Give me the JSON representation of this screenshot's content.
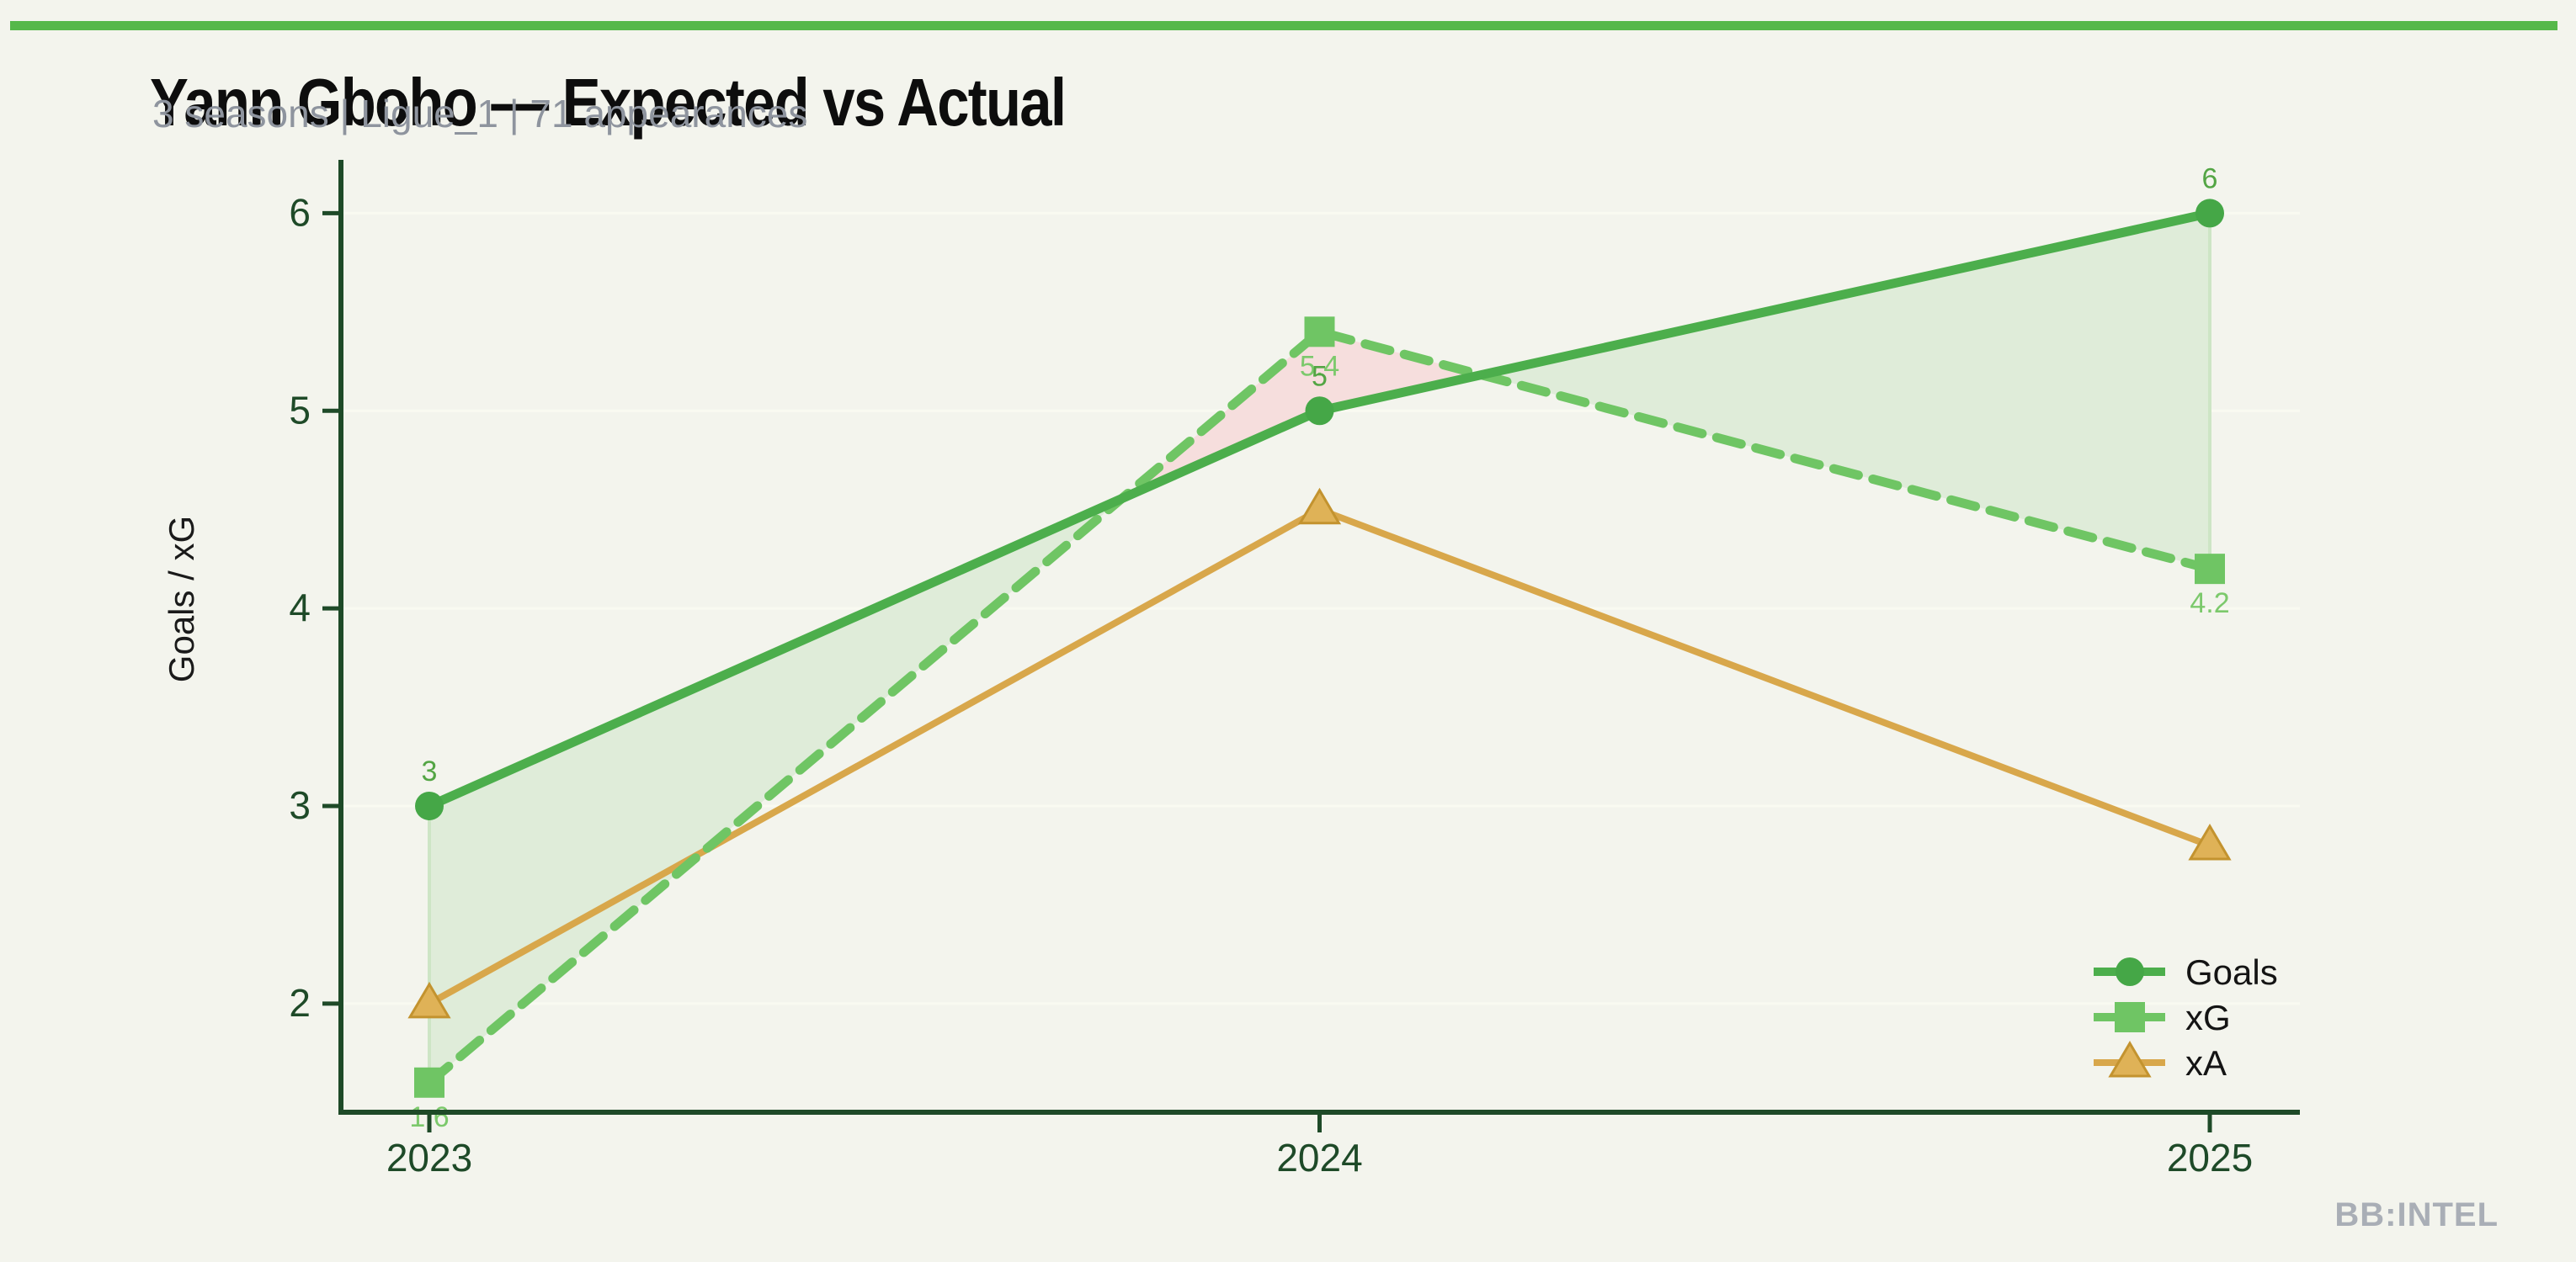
{
  "page": {
    "watermark": "BB:INTEL",
    "background": "#f3f4ed",
    "accent_bar_color": "#56b84a"
  },
  "chart_data": {
    "type": "line",
    "title": "Yann Gboho — Expected vs Actual",
    "subtitle": "3 seasons | Ligue_1 | 71 appearances",
    "xlabel": "",
    "ylabel": "Goals / xG",
    "x_categories": [
      "2023",
      "2024",
      "2025"
    ],
    "yticks": [
      2,
      3,
      4,
      5,
      6
    ],
    "ylim": [
      1.45,
      6.27
    ],
    "grid": "horizontal-faint",
    "series": [
      {
        "name": "Goals",
        "values": [
          3,
          5,
          6
        ],
        "point_labels": [
          "3",
          "5",
          "6"
        ],
        "label_side": "above",
        "label_color": "#53a544",
        "color": "#4cae4c",
        "marker": "circle",
        "marker_color": "#45a747",
        "line_style": "solid"
      },
      {
        "name": "xG",
        "values": [
          1.6,
          5.4,
          4.2
        ],
        "point_labels": [
          "1.6",
          "5.4",
          "4.2"
        ],
        "label_side": "below",
        "label_color": "#7cc96c",
        "color": "#6fc564",
        "marker": "square",
        "marker_color": "#6fc564",
        "line_style": "dashed"
      },
      {
        "name": "xA",
        "values": [
          2.0,
          4.5,
          2.8
        ],
        "point_labels": null,
        "label_side": null,
        "label_color": null,
        "color": "#d8a74b",
        "marker": "triangle",
        "marker_color": "#dfb257",
        "marker_edge": "#c3932f",
        "line_style": "solid"
      }
    ],
    "fill_between": {
      "series_a": "Goals",
      "series_b": "xG",
      "a_above_color": "#dfecd9",
      "b_above_color": "#f6dedd",
      "edge_color": "#cde5c5"
    },
    "legend": {
      "position": "lower right",
      "entries": [
        "Goals",
        "xG",
        "xA"
      ]
    },
    "colors": {
      "axis": "#1e4a28",
      "tick_label": "#1e4a28",
      "grid": "#f9faf1",
      "ylabel": "#1a1a1a",
      "legend_text": "#141414"
    }
  }
}
